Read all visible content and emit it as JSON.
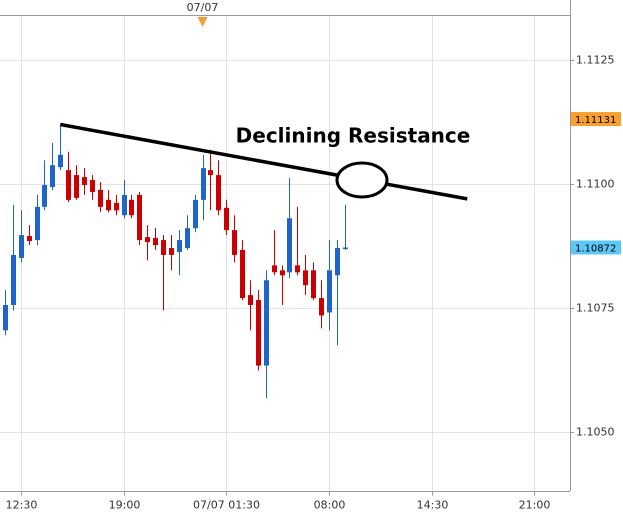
{
  "chart_data": {
    "type": "candlestick",
    "annotation": "Declining Resistance",
    "up_color": "#1f64c9",
    "down_color": "#cc0000",
    "xlim": [
      -0.63,
      71.5
    ],
    "ylim": [
      1.1038,
      1.1134
    ],
    "xticks": [
      {
        "value": 2,
        "label": "12:30"
      },
      {
        "value": 15,
        "label": "19:00"
      },
      {
        "value": 28,
        "label": "07/07 01:30"
      },
      {
        "value": 41,
        "label": "08:00"
      },
      {
        "value": 54,
        "label": "14:30"
      },
      {
        "value": 67,
        "label": "21:00"
      }
    ],
    "yticks": [
      1.1125,
      {
        "value": 1.11,
        "label": "1.1100"
      },
      1.1075,
      {
        "value": 1.105,
        "label": "1.1050"
      }
    ],
    "grid": true,
    "top_marker": {
      "value": 25,
      "label": "07/07",
      "color": "#f0a030"
    },
    "price_tags": [
      {
        "value": 1.11131,
        "color": "#f7a030"
      },
      {
        "value": 1.10872,
        "color": "#5cc8f5"
      }
    ],
    "trendline": {
      "x": [
        7,
        58.5
      ],
      "y": [
        1.1112,
        1.1097
      ],
      "color": "#000000"
    },
    "open": [
      1.10705,
      1.10756,
      1.10851,
      1.10895,
      1.10887,
      1.10954,
      1.10994,
      1.11034,
      1.11028,
      1.11018,
      1.11014,
      1.11008,
      1.10988,
      1.10968,
      1.10962,
      1.10937,
      1.10968,
      1.10978,
      1.10893,
      1.10891,
      1.10887,
      1.10871,
      1.10863,
      1.10871,
      1.10911,
      1.10968,
      1.11028,
      1.11018,
      1.10952,
      1.10907,
      1.10867,
      1.10776,
      1.10766,
      1.10634,
      1.10836,
      1.10826,
      1.10822,
      1.10836,
      1.10826,
      1.10826,
      1.1077,
      1.10741,
      1.10816,
      1.10869
    ],
    "high": [
      1.10786,
      1.10958,
      1.10947,
      1.10917,
      1.10978,
      1.11048,
      1.11083,
      1.11119,
      1.11065,
      1.11038,
      1.11032,
      1.11018,
      1.11004,
      1.10988,
      1.10978,
      1.11008,
      1.10978,
      1.10984,
      1.10917,
      1.10911,
      1.10897,
      1.10897,
      1.10907,
      1.10937,
      1.10978,
      1.11059,
      1.11069,
      1.11048,
      1.10968,
      1.10937,
      1.10887,
      1.10806,
      1.10786,
      1.10826,
      1.10907,
      1.10836,
      1.11012,
      1.10954,
      1.10857,
      1.10842,
      1.10806,
      1.10887,
      1.10887,
      1.10958
    ],
    "low": [
      1.10695,
      1.10745,
      1.10842,
      1.10877,
      1.10877,
      1.10947,
      1.10988,
      1.11028,
      1.10964,
      1.10968,
      1.10978,
      1.10968,
      1.10943,
      1.10943,
      1.10937,
      1.10931,
      1.10931,
      1.10877,
      1.10846,
      1.10867,
      1.10745,
      1.10826,
      1.10816,
      1.10867,
      1.10903,
      1.10927,
      1.10947,
      1.10937,
      1.10897,
      1.10842,
      1.10766,
      1.10705,
      1.10624,
      1.10568,
      1.10816,
      1.10756,
      1.1081,
      1.10816,
      1.10776,
      1.10766,
      1.10709,
      1.10705,
      1.10675,
      1.10867
    ],
    "close": [
      1.10756,
      1.10857,
      1.10897,
      1.10885,
      1.10954,
      1.10998,
      1.11038,
      1.11059,
      1.10968,
      1.10972,
      1.10998,
      1.10984,
      1.10954,
      1.10947,
      1.10947,
      1.10978,
      1.10937,
      1.10887,
      1.10883,
      1.10877,
      1.10857,
      1.10857,
      1.10887,
      1.10911,
      1.10968,
      1.11032,
      1.11018,
      1.10947,
      1.10907,
      1.10857,
      1.1077,
      1.10756,
      1.10634,
      1.10806,
      1.10822,
      1.10816,
      1.10931,
      1.10822,
      1.10796,
      1.1077,
      1.10735,
      1.10826,
      1.10871,
      1.10872
    ]
  }
}
